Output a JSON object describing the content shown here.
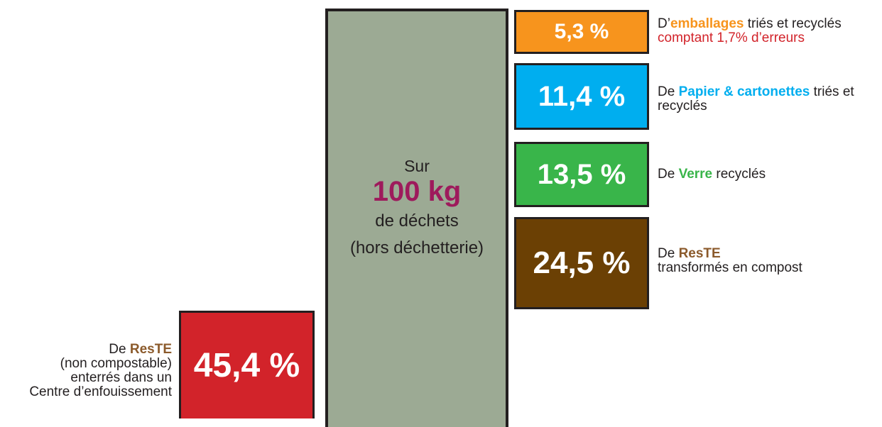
{
  "center": {
    "line1": "Sur",
    "amount": "100 kg",
    "line3": "de déchets",
    "line4": "(hors déchetterie)"
  },
  "items": [
    {
      "value": "5,3 %",
      "lines": [
        [
          "D’",
          "emballages",
          " triés et recyclés"
        ],
        [
          "comptant 1,7% d’erreurs"
        ]
      ]
    },
    {
      "value": "11,4 %",
      "lines": [
        [
          "De ",
          "Papier & cartonettes",
          " triés et"
        ],
        [
          "recyclés"
        ]
      ]
    },
    {
      "value": "13,5 %",
      "lines": [
        [
          "De ",
          "Verre",
          " recyclés"
        ]
      ]
    },
    {
      "value": "24,5 %",
      "lines": [
        [
          "De ",
          "ResTE"
        ],
        [
          "transformés en compost"
        ]
      ]
    },
    {
      "value": "45,4 %",
      "lines": [
        [
          "De ",
          "ResTE"
        ],
        [
          "(non compostable)"
        ],
        [
          "enterrés dans un"
        ],
        [
          "Centre d’enfouissement"
        ]
      ]
    }
  ]
}
